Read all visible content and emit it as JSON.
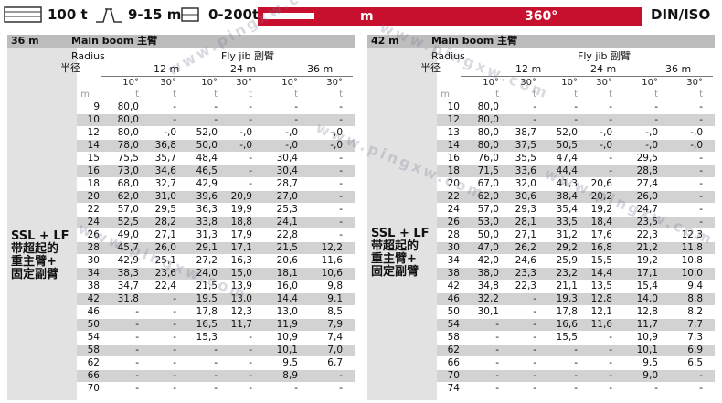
{
  "header": {
    "capacity": "100 t",
    "jib_length": "9-15 m",
    "load_range": "0-200t",
    "bar_left_text": "m",
    "slew": "360°",
    "standard": "DIN/ISO"
  },
  "left_table": {
    "boom_length": "36 m",
    "main_boom": "Main boom 主臂",
    "radius_en": "Radius",
    "radius_cn": "半径",
    "fly_jib": "Fly jib 副臂",
    "jib_lengths": [
      "12 m",
      "24 m",
      "36 m"
    ],
    "angles": [
      "10°",
      "30°",
      "10°",
      "30°",
      "10°",
      "30°"
    ],
    "unit_m": "m",
    "unit_t": "t",
    "ssl": [
      "SSL + LF",
      "带超起的",
      "重主臂+",
      "固定副臂"
    ],
    "rows": [
      [
        "9",
        "80,0",
        "-",
        "-",
        "-",
        "-",
        "-"
      ],
      [
        "10",
        "80,0",
        "-",
        "-",
        "-",
        "-",
        "-"
      ],
      [
        "12",
        "80,0",
        "-,0",
        "52,0",
        "-,0",
        "-,0",
        "-,0"
      ],
      [
        "14",
        "78,0",
        "36,8",
        "50,0",
        "-,0",
        "-,0",
        "-,0"
      ],
      [
        "15",
        "75,5",
        "35,7",
        "48,4",
        "-",
        "30,4",
        "-"
      ],
      [
        "16",
        "73,0",
        "34,6",
        "46,5",
        "-",
        "30,4",
        "-"
      ],
      [
        "18",
        "68,0",
        "32,7",
        "42,9",
        "-",
        "28,7",
        "-"
      ],
      [
        "20",
        "62,0",
        "31,0",
        "39,6",
        "20,9",
        "27,0",
        "-"
      ],
      [
        "22",
        "57,0",
        "29,5",
        "36,3",
        "19,9",
        "25,3",
        "-"
      ],
      [
        "24",
        "52,5",
        "28,2",
        "33,8",
        "18,8",
        "24,1",
        "-"
      ],
      [
        "26",
        "49,0",
        "27,1",
        "31,3",
        "17,9",
        "22,8",
        "-"
      ],
      [
        "28",
        "45,7",
        "26,0",
        "29,1",
        "17,1",
        "21,5",
        "12,2"
      ],
      [
        "30",
        "42,9",
        "25,1",
        "27,2",
        "16,3",
        "20,6",
        "11,6"
      ],
      [
        "34",
        "38,3",
        "23,6",
        "24,0",
        "15,0",
        "18,1",
        "10,6"
      ],
      [
        "38",
        "34,7",
        "22,4",
        "21,5",
        "13,9",
        "16,0",
        "9,8"
      ],
      [
        "42",
        "31,8",
        "-",
        "19,5",
        "13,0",
        "14,4",
        "9,1"
      ],
      [
        "46",
        "-",
        "-",
        "17,8",
        "12,3",
        "13,0",
        "8,5"
      ],
      [
        "50",
        "-",
        "-",
        "16,5",
        "11,7",
        "11,9",
        "7,9"
      ],
      [
        "54",
        "-",
        "-",
        "15,3",
        "-",
        "10,9",
        "7,4"
      ],
      [
        "58",
        "-",
        "-",
        "-",
        "-",
        "10,1",
        "7,0"
      ],
      [
        "62",
        "-",
        "-",
        "-",
        "-",
        "9,5",
        "6,7"
      ],
      [
        "66",
        "-",
        "-",
        "-",
        "-",
        "8,9",
        "-"
      ],
      [
        "70",
        "-",
        "-",
        "-",
        "-",
        "-",
        "-"
      ]
    ]
  },
  "right_table": {
    "boom_length": "42 m",
    "main_boom": "Main boom 主臂",
    "radius_en": "Radius",
    "radius_cn": "半径",
    "fly_jib": "Fly jib 副臂",
    "jib_lengths": [
      "12 m",
      "24 m",
      "36 m"
    ],
    "angles": [
      "10°",
      "30°",
      "10°",
      "30°",
      "10°",
      "30°"
    ],
    "unit_m": "m",
    "unit_t": "t",
    "ssl": [
      "SSL + LF",
      "带超起的",
      "重主臂+",
      "固定副臂"
    ],
    "rows": [
      [
        "10",
        "80,0",
        "-",
        "-",
        "-",
        "-",
        "-"
      ],
      [
        "12",
        "80,0",
        "-",
        "-",
        "-",
        "-",
        "-"
      ],
      [
        "13",
        "80,0",
        "38,7",
        "52,0",
        "-,0",
        "-,0",
        "-,0"
      ],
      [
        "14",
        "80,0",
        "37,5",
        "50,5",
        "-,0",
        "-,0",
        "-,0"
      ],
      [
        "16",
        "76,0",
        "35,5",
        "47,4",
        "-",
        "29,5",
        "-"
      ],
      [
        "18",
        "71,5",
        "33,6",
        "44,4",
        "-",
        "28,8",
        "-"
      ],
      [
        "20",
        "67,0",
        "32,0",
        "41,3",
        "20,6",
        "27,4",
        "-"
      ],
      [
        "22",
        "62,0",
        "30,6",
        "38,4",
        "20,2",
        "26,0",
        "-"
      ],
      [
        "24",
        "57,0",
        "29,3",
        "35,4",
        "19,2",
        "24,7",
        "-"
      ],
      [
        "26",
        "53,0",
        "28,1",
        "33,5",
        "18,4",
        "23,5",
        "-"
      ],
      [
        "28",
        "50,0",
        "27,1",
        "31,2",
        "17,6",
        "22,3",
        "12,3"
      ],
      [
        "30",
        "47,0",
        "26,2",
        "29,2",
        "16,8",
        "21,2",
        "11,8"
      ],
      [
        "34",
        "42,0",
        "24,6",
        "25,9",
        "15,5",
        "19,2",
        "10,8"
      ],
      [
        "38",
        "38,0",
        "23,3",
        "23,2",
        "14,4",
        "17,1",
        "10,0"
      ],
      [
        "42",
        "34,8",
        "22,3",
        "21,1",
        "13,5",
        "15,4",
        "9,4"
      ],
      [
        "46",
        "32,2",
        "-",
        "19,3",
        "12,8",
        "14,0",
        "8,8"
      ],
      [
        "50",
        "30,1",
        "-",
        "17,8",
        "12,1",
        "12,8",
        "8,2"
      ],
      [
        "54",
        "-",
        "-",
        "16,6",
        "11,6",
        "11,7",
        "7,7"
      ],
      [
        "58",
        "-",
        "-",
        "15,5",
        "-",
        "10,9",
        "7,3"
      ],
      [
        "62",
        "-",
        "-",
        "-",
        "-",
        "10,1",
        "6,9"
      ],
      [
        "66",
        "-",
        "-",
        "-",
        "-",
        "9,5",
        "6,5"
      ],
      [
        "70",
        "-",
        "-",
        "-",
        "-",
        "9,0",
        "-"
      ],
      [
        "74",
        "-",
        "-",
        "-",
        "-",
        "-",
        "-"
      ]
    ]
  },
  "watermark": "www.pingxw.com"
}
